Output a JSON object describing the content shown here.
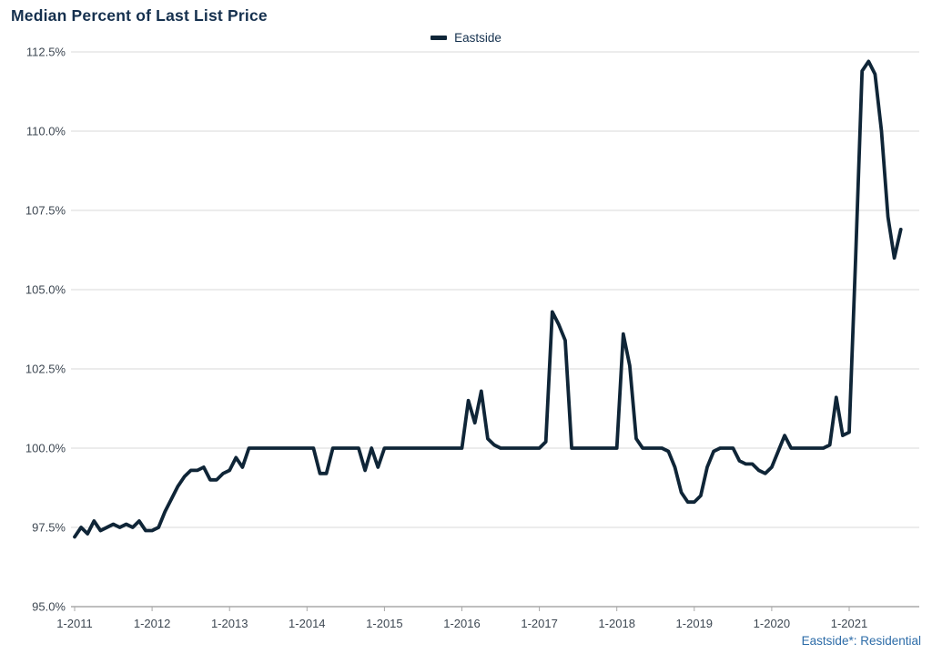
{
  "header": {
    "title": "Median Percent of Last List Price"
  },
  "legend": {
    "label": "Eastside"
  },
  "footnote": {
    "text": "Eastside*: Residential"
  },
  "colors": {
    "line": "#0f2537",
    "title": "#15304e",
    "legend_text": "#16324f",
    "footnote": "#2d6ca8",
    "grid": "#d9d9d9",
    "axis": "#a8a8a8",
    "tick_text": "#3d4752"
  },
  "chart_data": {
    "type": "line",
    "title": "Median Percent of Last List Price",
    "xlabel": "",
    "ylabel": "Median Percent of Last List Price",
    "x_frequency": "monthly",
    "x_start": "1-2011",
    "x_end": "9-2021",
    "x_tick_labels": [
      "1-2011",
      "1-2012",
      "1-2013",
      "1-2014",
      "1-2015",
      "1-2016",
      "1-2017",
      "1-2018",
      "1-2019",
      "1-2020",
      "1-2021"
    ],
    "x_tick_month_indices": [
      0,
      12,
      24,
      36,
      48,
      60,
      72,
      84,
      96,
      108,
      120
    ],
    "y_ticks": [
      95.0,
      97.5,
      100.0,
      102.5,
      105.0,
      107.5,
      110.0,
      112.5
    ],
    "ylim": [
      95.0,
      112.5
    ],
    "y_unit": "%",
    "grid": "horizontal",
    "legend_position": "top-center",
    "series": [
      {
        "name": "Eastside",
        "values": [
          97.2,
          97.5,
          97.3,
          97.7,
          97.4,
          97.5,
          97.6,
          97.5,
          97.6,
          97.5,
          97.7,
          97.4,
          97.4,
          97.5,
          98.0,
          98.4,
          98.8,
          99.1,
          99.3,
          99.3,
          99.4,
          99.0,
          99.0,
          99.2,
          99.3,
          99.7,
          99.4,
          100.0,
          100.0,
          100.0,
          100.0,
          100.0,
          100.0,
          100.0,
          100.0,
          100.0,
          100.0,
          100.0,
          99.2,
          99.2,
          100.0,
          100.0,
          100.0,
          100.0,
          100.0,
          99.3,
          100.0,
          99.4,
          100.0,
          100.0,
          100.0,
          100.0,
          100.0,
          100.0,
          100.0,
          100.0,
          100.0,
          100.0,
          100.0,
          100.0,
          100.0,
          101.5,
          100.8,
          101.8,
          100.3,
          100.1,
          100.0,
          100.0,
          100.0,
          100.0,
          100.0,
          100.0,
          100.0,
          100.2,
          104.3,
          103.9,
          103.4,
          100.0,
          100.0,
          100.0,
          100.0,
          100.0,
          100.0,
          100.0,
          100.0,
          103.6,
          102.6,
          100.3,
          100.0,
          100.0,
          100.0,
          100.0,
          99.9,
          99.4,
          98.6,
          98.3,
          98.3,
          98.5,
          99.4,
          99.9,
          100.0,
          100.0,
          100.0,
          99.6,
          99.5,
          99.5,
          99.3,
          99.2,
          99.4,
          99.9,
          100.4,
          100.0,
          100.0,
          100.0,
          100.0,
          100.0,
          100.0,
          100.1,
          101.6,
          100.4,
          100.5,
          106.0,
          111.9,
          112.2,
          111.8,
          110.0,
          107.3,
          106.0,
          106.9
        ]
      }
    ]
  }
}
